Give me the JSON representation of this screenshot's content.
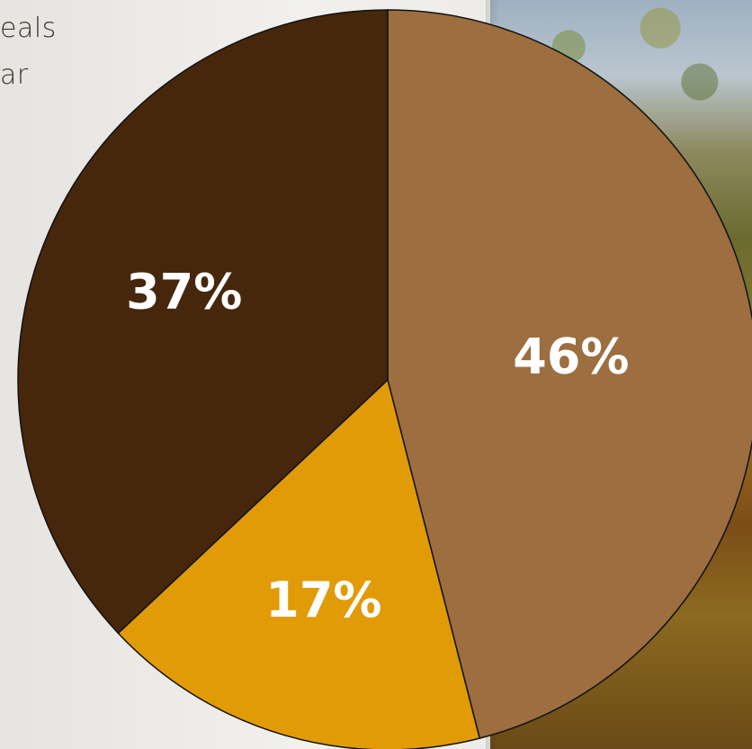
{
  "snippets": {
    "line1": "eals",
    "line2": "ar"
  },
  "chart_data": {
    "type": "pie",
    "title": "",
    "start_angle_deg": 0,
    "direction": "clockwise",
    "slices": [
      {
        "label": "46%",
        "value": 46,
        "color": "#9c6e40"
      },
      {
        "label": "17%",
        "value": 17,
        "color": "#e09b06"
      },
      {
        "label": "37%",
        "value": 37,
        "color": "#46270c"
      }
    ]
  }
}
